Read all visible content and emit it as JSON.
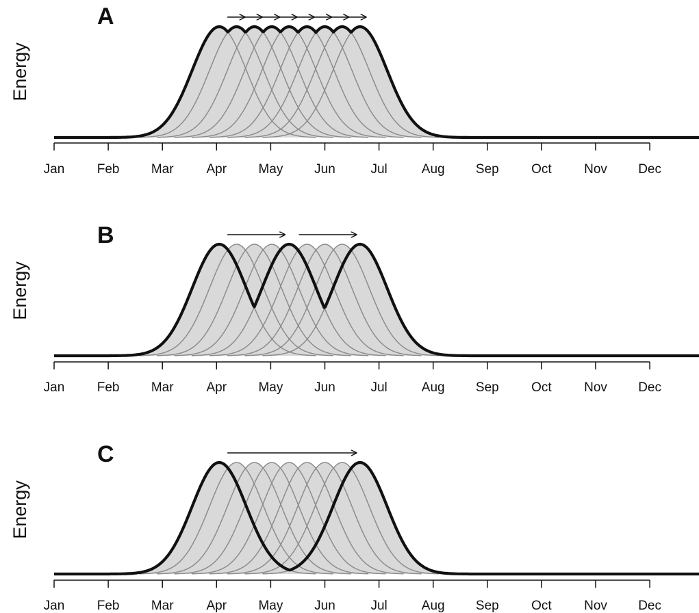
{
  "chart_data": [
    {
      "type": "line",
      "panel_label": "A",
      "ylabel": "Energy",
      "categories": [
        "Jan",
        "Feb",
        "Mar",
        "Apr",
        "May",
        "Jun",
        "Jul",
        "Aug",
        "Sep",
        "Oct",
        "Nov",
        "Dec"
      ],
      "xlim_months": [
        0,
        11.85
      ],
      "component_curves": {
        "count": 9,
        "peak_months": [
          3.05,
          3.37,
          3.7,
          4.02,
          4.34,
          4.67,
          5.0,
          5.32,
          5.65
        ],
        "sd_months": 0.5,
        "color": "#8c8c8c"
      },
      "envelope": {
        "rule": "max of components",
        "color": "#111111"
      },
      "fill_color": "#d9d9d9",
      "arrows": [
        {
          "from": 3.2,
          "to": 3.52
        },
        {
          "from": 3.52,
          "to": 3.84
        },
        {
          "from": 3.84,
          "to": 4.16
        },
        {
          "from": 4.16,
          "to": 4.48
        },
        {
          "from": 4.48,
          "to": 4.8
        },
        {
          "from": 4.8,
          "to": 5.12
        },
        {
          "from": 5.12,
          "to": 5.44
        },
        {
          "from": 5.44,
          "to": 5.76
        }
      ]
    },
    {
      "type": "line",
      "panel_label": "B",
      "ylabel": "Energy",
      "categories": [
        "Jan",
        "Feb",
        "Mar",
        "Apr",
        "May",
        "Jun",
        "Jul",
        "Aug",
        "Sep",
        "Oct",
        "Nov",
        "Dec"
      ],
      "xlim_months": [
        0,
        11.85
      ],
      "component_curves": {
        "count": 9,
        "peak_months": [
          3.05,
          3.37,
          3.7,
          4.02,
          4.34,
          4.67,
          5.0,
          5.32,
          5.65
        ],
        "sd_months": 0.5,
        "color": "#8c8c8c"
      },
      "envelope": {
        "rule": "max of components",
        "components": [
          0,
          4,
          8
        ],
        "color": "#111111"
      },
      "fill_color": "#d9d9d9",
      "arrows": [
        {
          "from": 3.2,
          "to": 4.26
        },
        {
          "from": 4.52,
          "to": 5.58
        }
      ]
    },
    {
      "type": "line",
      "panel_label": "C",
      "ylabel": "Energy",
      "categories": [
        "Jan",
        "Feb",
        "Mar",
        "Apr",
        "May",
        "Jun",
        "Jul",
        "Aug",
        "Sep",
        "Oct",
        "Nov",
        "Dec"
      ],
      "xlim_months": [
        0,
        11.85
      ],
      "component_curves": {
        "count": 9,
        "peak_months": [
          3.05,
          3.37,
          3.7,
          4.02,
          4.34,
          4.67,
          5.0,
          5.32,
          5.65
        ],
        "sd_months": 0.5,
        "color": "#8c8c8c"
      },
      "envelope": {
        "rule": "max of components",
        "components": [
          0,
          8
        ],
        "color": "#111111"
      },
      "fill_color": "#d9d9d9",
      "arrows": [
        {
          "from": 3.2,
          "to": 5.58
        }
      ]
    }
  ]
}
